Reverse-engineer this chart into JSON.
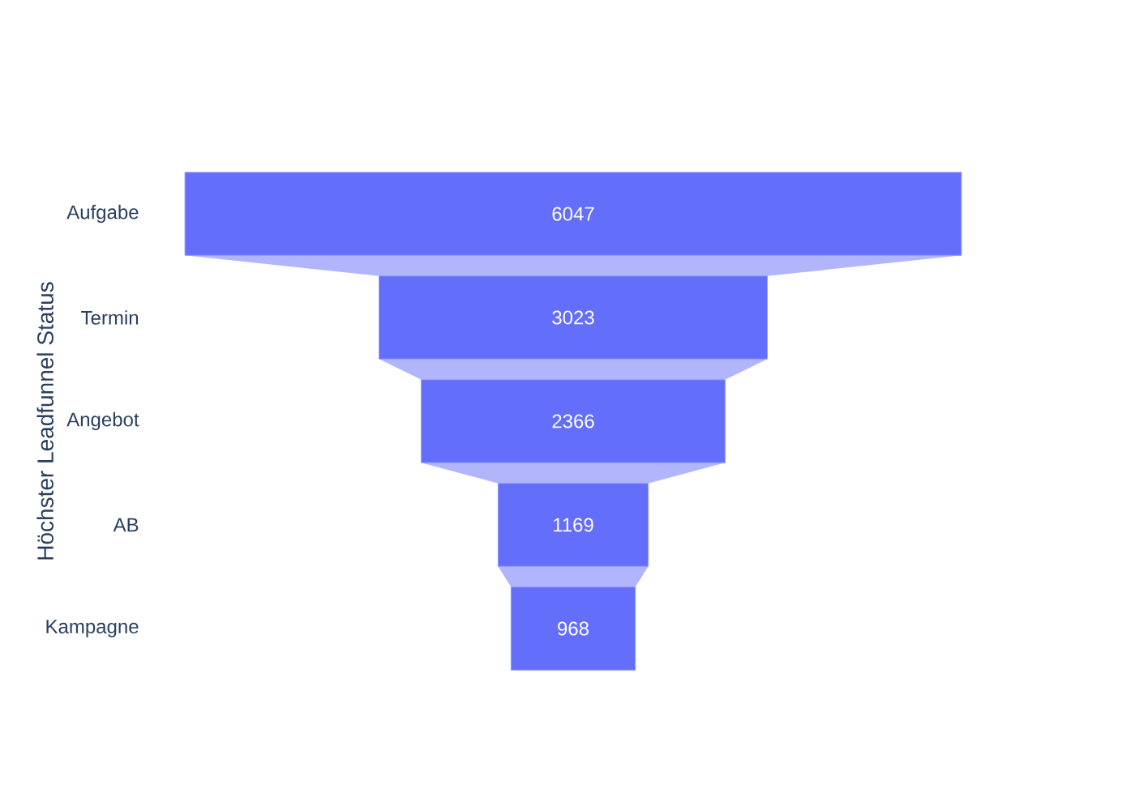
{
  "chart_data": {
    "type": "other",
    "categories": [
      "Aufgabe",
      "Termin",
      "Angebot",
      "AB",
      "Kampagne"
    ],
    "values": [
      6047,
      3023,
      2366,
      1169,
      968
    ],
    "color": "#636efa",
    "ylabel": "Höchster Leadfunnel Status",
    "data_labels": true
  }
}
